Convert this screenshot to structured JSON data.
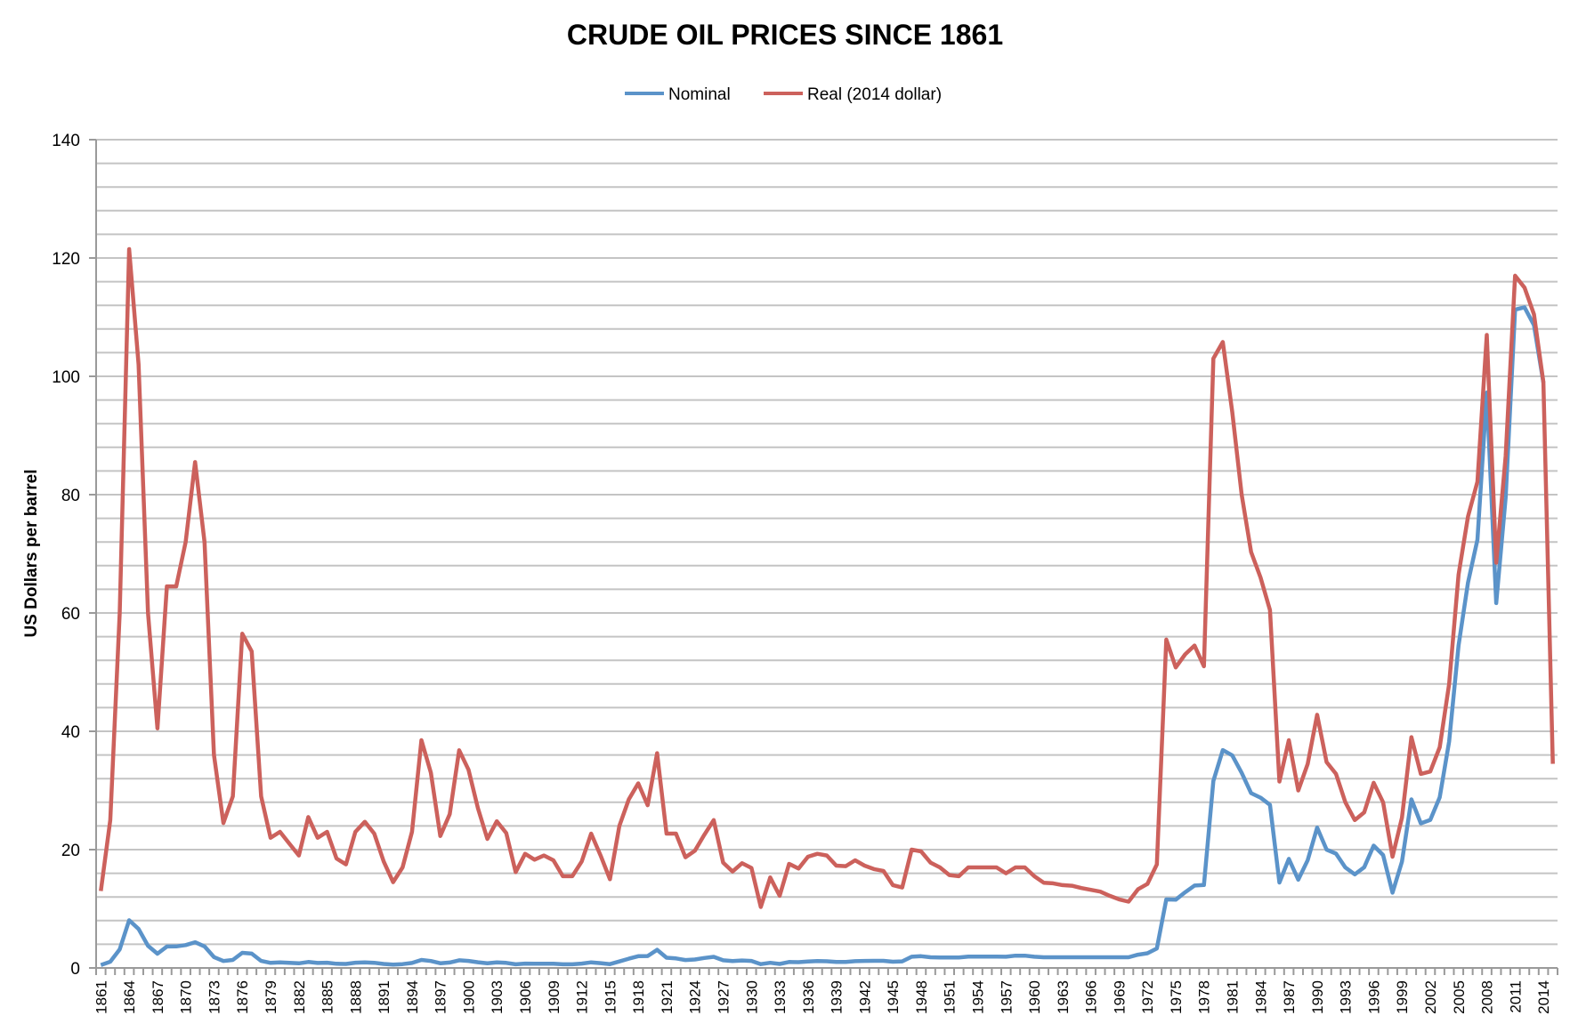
{
  "chart_data": {
    "type": "line",
    "title": "CRUDE OIL PRICES SINCE 1861",
    "ylabel": "US Dollars per barrel",
    "xlabel": "",
    "ylim": [
      0,
      140
    ],
    "y_ticks": [
      0,
      20,
      40,
      60,
      80,
      100,
      120,
      140
    ],
    "y_minor_grid_step": 4,
    "grid": true,
    "legend_position": "top",
    "x_start": 1861,
    "x_end": 2015,
    "x_tick_label_step": 3,
    "x_tick_label_last": 2014,
    "series": [
      {
        "name": "Nominal",
        "color": "#5b93c9",
        "values": [
          0.49,
          1.05,
          3.15,
          8.06,
          6.59,
          3.74,
          2.41,
          3.63,
          3.64,
          3.86,
          4.34,
          3.64,
          1.83,
          1.17,
          1.35,
          2.56,
          2.42,
          1.19,
          0.86,
          0.95,
          0.86,
          0.78,
          1.0,
          0.84,
          0.88,
          0.71,
          0.67,
          0.88,
          0.94,
          0.87,
          0.67,
          0.56,
          0.64,
          0.84,
          1.36,
          1.18,
          0.79,
          0.91,
          1.29,
          1.19,
          0.96,
          0.8,
          0.94,
          0.86,
          0.62,
          0.73,
          0.72,
          0.72,
          0.7,
          0.61,
          0.61,
          0.74,
          0.95,
          0.81,
          0.64,
          1.1,
          1.56,
          1.98,
          2.01,
          3.07,
          1.73,
          1.61,
          1.34,
          1.43,
          1.68,
          1.88,
          1.3,
          1.17,
          1.27,
          1.19,
          0.65,
          0.87,
          0.67,
          1.0,
          0.97,
          1.09,
          1.18,
          1.13,
          1.02,
          1.02,
          1.14,
          1.19,
          1.2,
          1.21,
          1.05,
          1.12,
          1.9,
          1.99,
          1.8,
          1.78,
          1.77,
          1.77,
          1.93,
          1.93,
          1.93,
          1.93,
          1.9,
          2.08,
          2.08,
          1.9,
          1.8,
          1.8,
          1.8,
          1.8,
          1.8,
          1.8,
          1.8,
          1.8,
          1.8,
          1.8,
          2.24,
          2.48,
          3.29,
          11.58,
          11.53,
          12.8,
          13.92,
          14.02,
          31.61,
          36.83,
          35.93,
          32.97,
          29.55,
          28.78,
          27.56,
          14.43,
          18.44,
          14.92,
          18.23,
          23.73,
          20.0,
          19.32,
          16.97,
          15.82,
          17.02,
          20.67,
          19.09,
          12.72,
          17.97,
          28.5,
          24.44,
          25.02,
          28.83,
          38.27,
          54.52,
          65.14,
          72.39,
          97.26,
          61.67,
          79.5,
          111.26,
          111.67,
          108.66,
          98.95,
          null
        ]
      },
      {
        "name": "Real (2014 dollar)",
        "color": "#cc615c",
        "values": [
          13,
          25,
          60,
          121.5,
          102,
          60,
          40.5,
          64.5,
          64.5,
          72,
          85.5,
          72,
          36,
          24.5,
          29,
          56.5,
          53.5,
          29,
          22,
          23,
          21,
          19,
          25.5,
          22,
          23,
          18.5,
          17.5,
          23,
          24.7,
          22.7,
          18,
          14.5,
          17,
          23,
          38.5,
          33,
          22.3,
          26,
          36.8,
          33.5,
          27,
          21.8,
          24.8,
          22.8,
          16.2,
          19.3,
          18.3,
          19,
          18.2,
          15.5,
          15.5,
          18,
          22.7,
          19,
          15,
          24,
          28.5,
          31.2,
          27.5,
          36.3,
          22.7,
          22.7,
          18.7,
          19.8,
          22.5,
          25,
          17.8,
          16.3,
          17.7,
          16.9,
          10.3,
          15.3,
          12.2,
          17.6,
          16.8,
          18.8,
          19.3,
          19,
          17.3,
          17.2,
          18.2,
          17.3,
          16.7,
          16.4,
          14,
          13.6,
          20,
          19.7,
          17.8,
          17,
          15.7,
          15.5,
          17,
          17,
          17,
          17,
          16,
          17,
          17,
          15.5,
          14.4,
          14.3,
          14,
          13.9,
          13.5,
          13.2,
          12.9,
          12.2,
          11.6,
          11.2,
          13.3,
          14.2,
          17.5,
          55.5,
          50.8,
          53,
          54.5,
          51,
          103,
          105.8,
          94,
          80,
          70.3,
          66,
          60.5,
          31.5,
          38.5,
          30,
          34.5,
          42.8,
          34.8,
          32.8,
          28,
          25,
          26.3,
          31.3,
          28,
          18.8,
          25.4,
          39,
          32.8,
          33.2,
          37.3,
          48,
          66.5,
          76.3,
          82.2,
          107,
          68.5,
          86.5,
          117,
          115,
          110.5,
          99,
          34.5
        ]
      }
    ]
  }
}
